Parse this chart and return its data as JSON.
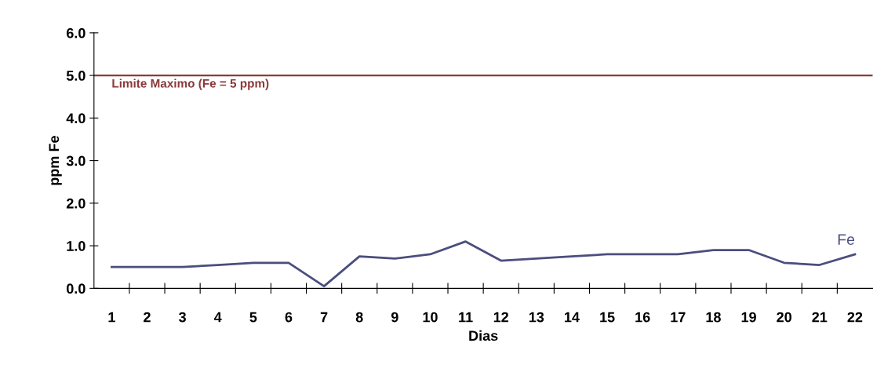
{
  "chart_data": {
    "type": "line",
    "xlabel": "Dias",
    "ylabel": "ppm Fe",
    "categories": [
      "1",
      "2",
      "3",
      "4",
      "5",
      "6",
      "7",
      "8",
      "9",
      "10",
      "11",
      "12",
      "13",
      "14",
      "15",
      "16",
      "17",
      "18",
      "19",
      "20",
      "21",
      "22"
    ],
    "series": [
      {
        "name": "Fe",
        "color": "#4a4e7e",
        "values": [
          0.5,
          0.5,
          0.5,
          0.55,
          0.6,
          0.6,
          0.05,
          0.75,
          0.7,
          0.8,
          1.1,
          0.65,
          0.7,
          0.75,
          0.8,
          0.8,
          0.8,
          0.9,
          0.9,
          0.6,
          0.55,
          0.8
        ]
      }
    ],
    "ylim": [
      0,
      6
    ],
    "yticks": [
      {
        "value": 0,
        "label": "0.0"
      },
      {
        "value": 1,
        "label": "1.0"
      },
      {
        "value": 2,
        "label": "2.0"
      },
      {
        "value": 3,
        "label": "3.0"
      },
      {
        "value": 4,
        "label": "4.0"
      },
      {
        "value": 5,
        "label": "5.0"
      },
      {
        "value": 6,
        "label": "6.0"
      }
    ],
    "ref_lines": [
      {
        "axis": "y",
        "value": 5,
        "label": "Limite Maximo (Fe = 5 ppm)",
        "color": "#8b3a3a"
      }
    ],
    "grid": false,
    "marker": "none",
    "line_style": "solid"
  }
}
